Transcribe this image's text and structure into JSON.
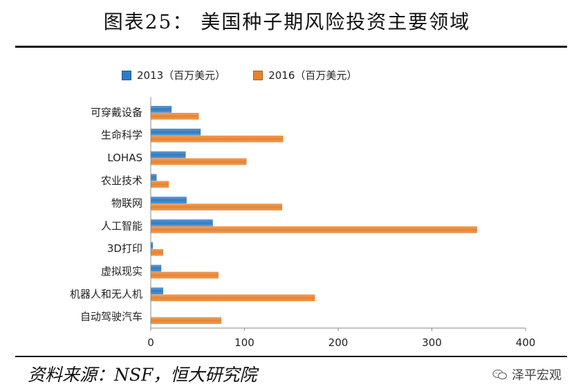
{
  "header": {
    "title": "图表25：  美国种子期风险投资主要领域"
  },
  "footer": {
    "source": "资料来源：NSF，恒大研究院",
    "brand": "泽平宏观"
  },
  "colors": {
    "series_2013": "#2e7bc4",
    "series_2016": "#e8822e",
    "axis": "#888888"
  },
  "icons": {
    "brand": "wechat-icon"
  },
  "chart_data": {
    "type": "bar",
    "orientation": "horizontal",
    "title": "",
    "xlabel": "",
    "ylabel": "",
    "categories": [
      "可穿戴设备",
      "生命科学",
      "LOHAS",
      "农业技术",
      "物联网",
      "人工智能",
      "3D打印",
      "虚拟现实",
      "机器人和无人机",
      "自动驾驶汽车"
    ],
    "series": [
      {
        "name": "2013（百万美元）",
        "values": [
          22,
          53,
          37,
          6,
          38,
          66,
          2,
          11,
          13,
          0
        ]
      },
      {
        "name": "2016（百万美元）",
        "values": [
          51,
          141,
          102,
          19,
          140,
          348,
          13,
          72,
          175,
          75
        ]
      }
    ],
    "xlim": [
      0,
      400
    ],
    "xticks": [
      "0",
      "100",
      "200",
      "300",
      "400"
    ],
    "grid": false,
    "legend": "top"
  }
}
